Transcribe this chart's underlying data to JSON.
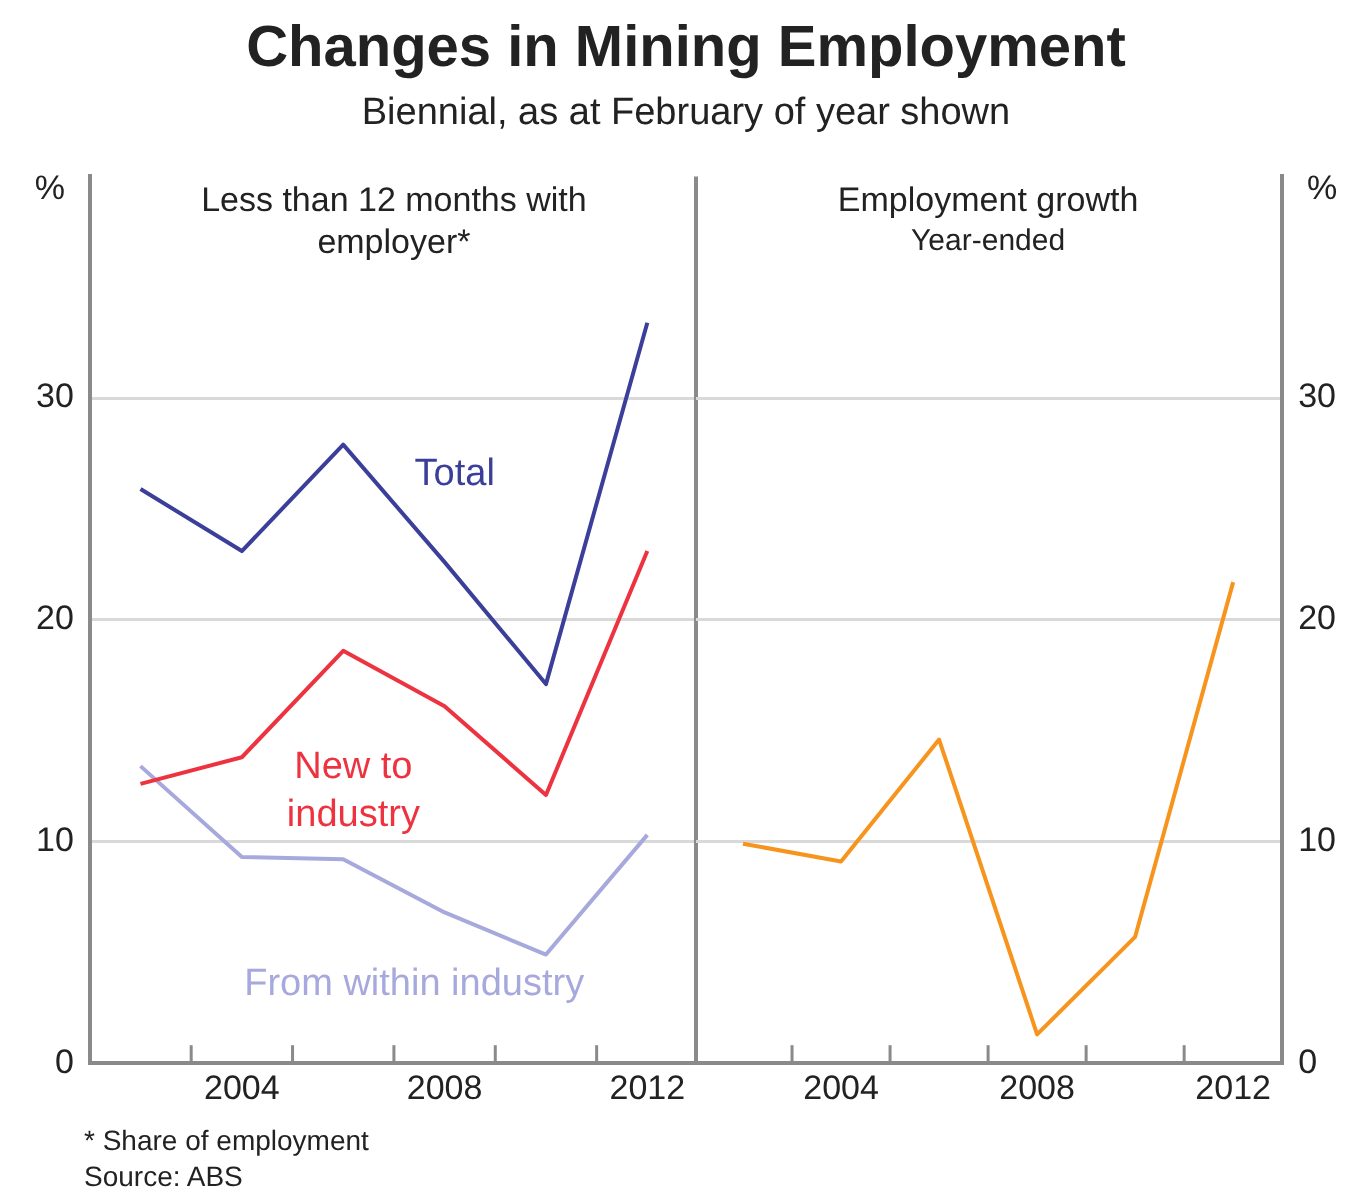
{
  "chart_data": [
    {
      "type": "other",
      "title": "Changes in Mining Employment",
      "subtitle": "Biennial, as at February of year shown",
      "annotations": [
        "* Share of employment",
        "Source: ABS"
      ]
    },
    {
      "type": "line",
      "title": "Less than 12 months with employer*",
      "ylabel": "%",
      "x": [
        2002,
        2004,
        2006,
        2008,
        2010,
        2012
      ],
      "xlim": [
        2001,
        2013
      ],
      "xticks": [
        {
          "value": 2003,
          "label": null
        },
        2004,
        {
          "value": 2005,
          "label": null
        },
        {
          "value": 2007,
          "label": null
        },
        2008,
        {
          "value": 2009,
          "label": null
        },
        {
          "value": 2011,
          "label": null
        },
        2012
      ],
      "ylim": [
        0,
        40
      ],
      "yticks": [
        0,
        10,
        20,
        30
      ],
      "grid": "y",
      "legend": false,
      "marker": "none",
      "line_style": "solid",
      "series": [
        {
          "name": "Total",
          "color": "#3b3f9a",
          "values": [
            25.9,
            23.1,
            27.9,
            22.6,
            17.1,
            33.4
          ]
        },
        {
          "name": "New to industry",
          "color": "#ee3340",
          "values": [
            12.6,
            13.8,
            18.6,
            16.1,
            12.1,
            23.1
          ]
        },
        {
          "name": "From within industry",
          "color": "#a7a9dc",
          "values": [
            13.4,
            9.3,
            9.2,
            6.8,
            4.9,
            10.3
          ]
        }
      ]
    },
    {
      "type": "line",
      "title": "Employment growth",
      "subtitle": "Year-ended",
      "ylabel": "%",
      "x": [
        2002,
        2004,
        2006,
        2008,
        2010,
        2012
      ],
      "xlim": [
        2001,
        2013
      ],
      "xticks": [
        {
          "value": 2003,
          "label": null
        },
        2004,
        {
          "value": 2005,
          "label": null
        },
        {
          "value": 2007,
          "label": null
        },
        2008,
        {
          "value": 2009,
          "label": null
        },
        {
          "value": 2011,
          "label": null
        },
        2012
      ],
      "ylim": [
        0,
        40
      ],
      "yticks": [
        0,
        10,
        20,
        30
      ],
      "grid": "y",
      "legend": false,
      "marker": "none",
      "line_style": "solid",
      "series": [
        {
          "color": "#f7941d",
          "values": [
            9.9,
            9.1,
            14.6,
            1.3,
            5.7,
            21.7
          ]
        }
      ]
    }
  ]
}
